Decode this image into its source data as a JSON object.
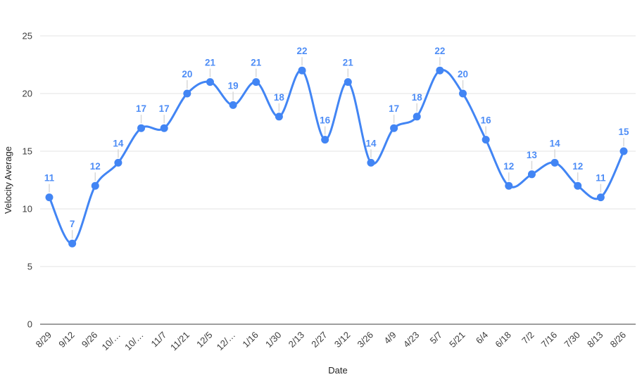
{
  "chart_data": {
    "type": "line",
    "title": "",
    "xlabel": "Date",
    "ylabel": "Velocity Average",
    "categories": [
      "8/29",
      "9/12",
      "9/26",
      "10/…",
      "10/…",
      "11/7",
      "11/21",
      "12/5",
      "12/…",
      "1/16",
      "1/30",
      "2/13",
      "2/27",
      "3/12",
      "3/26",
      "4/9",
      "4/23",
      "5/7",
      "5/21",
      "6/4",
      "6/18",
      "7/2",
      "7/16",
      "7/30",
      "8/13",
      "8/26"
    ],
    "values": [
      11,
      7,
      12,
      14,
      17,
      17,
      20,
      21,
      19,
      21,
      18,
      22,
      16,
      21,
      14,
      17,
      18,
      22,
      20,
      16,
      12,
      13,
      14,
      12,
      11,
      15
    ],
    "ylim": [
      0,
      25
    ],
    "ytick_step": 5,
    "yticks": [
      0,
      5,
      10,
      15,
      20,
      25
    ],
    "grid": true,
    "smooth": true,
    "point_labels": true,
    "legend_position": "none",
    "x_label_rotation_deg": -45,
    "colors": {
      "line": "#4285f4",
      "point": "#4285f4",
      "data_label": "#4e8df6",
      "axis_text": "#3c3c3c",
      "axis_title": "#222222",
      "gridline": "#e3e3e3",
      "baseline": "#9e9e9e",
      "leader": "#d9d9d9",
      "background": "#ffffff"
    }
  }
}
